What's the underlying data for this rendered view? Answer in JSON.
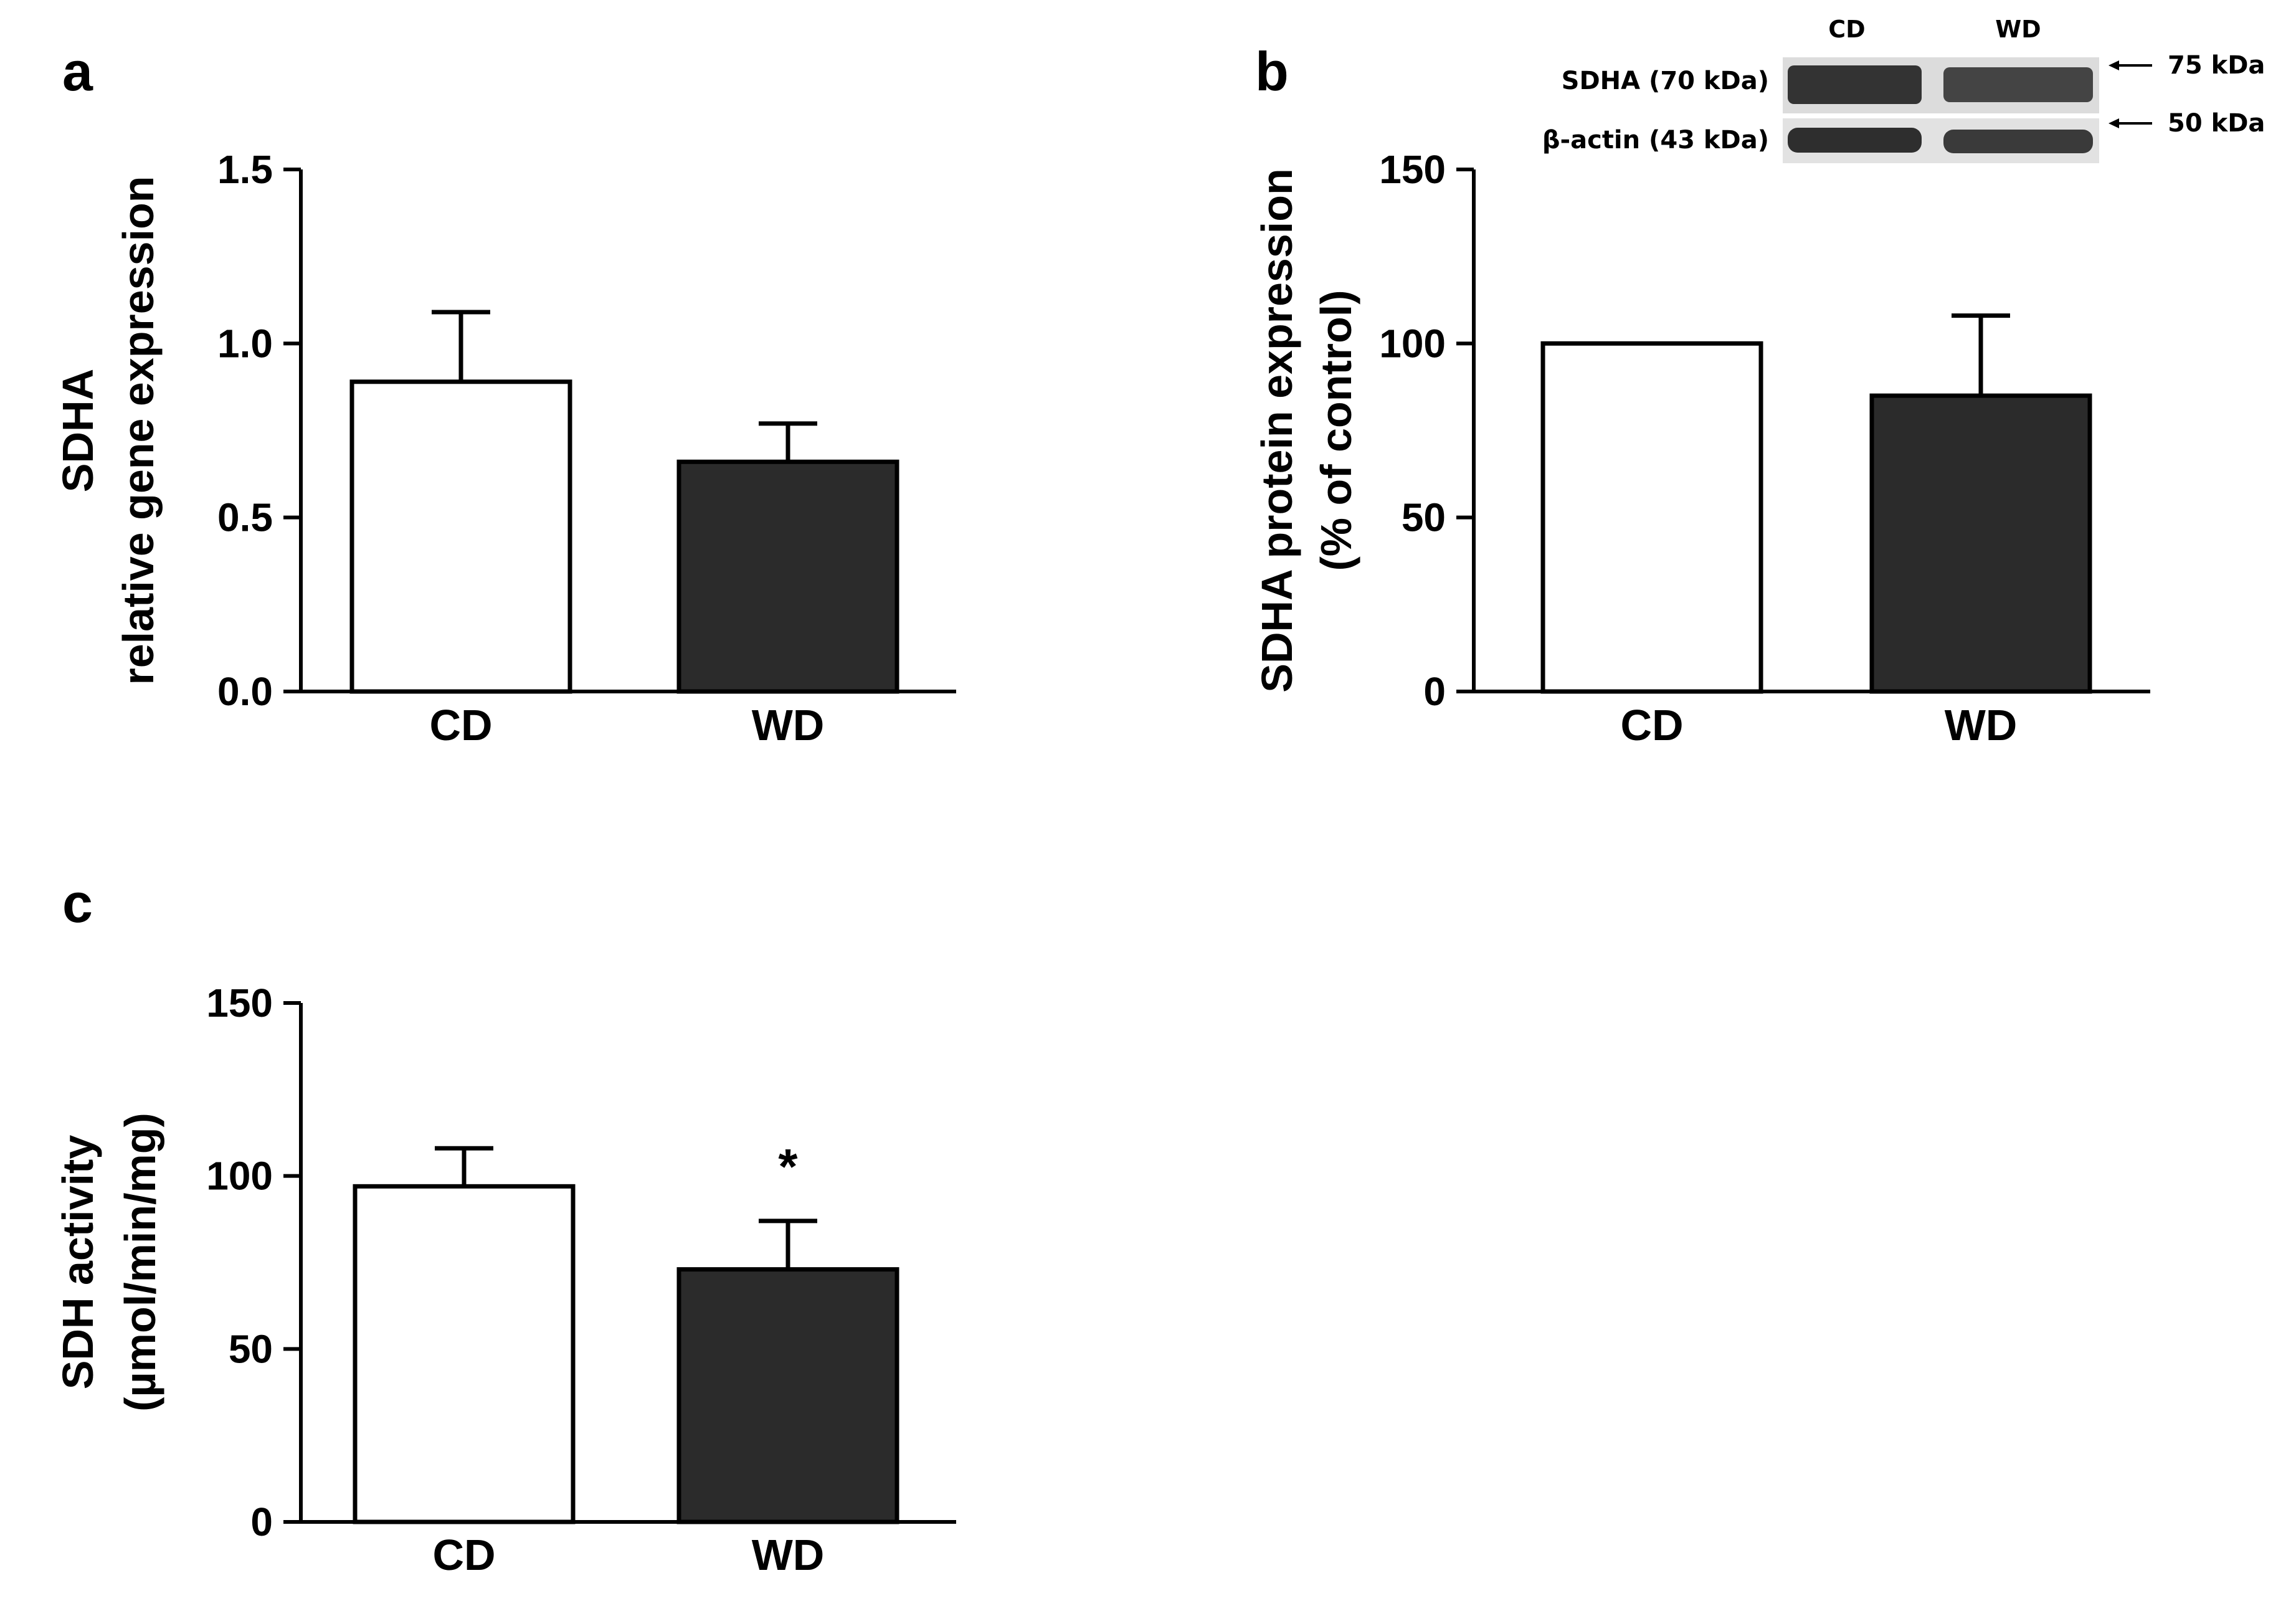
{
  "chart_data": [
    {
      "panel": "a",
      "type": "bar",
      "categories": [
        "CD",
        "WD"
      ],
      "values": [
        0.89,
        0.66
      ],
      "errors": [
        0.2,
        0.11
      ],
      "bar_colors": [
        "#ffffff",
        "#2b2b2b"
      ],
      "ylabel_line1": "SDHA",
      "ylabel_line2": "relative gene expression",
      "ylim": [
        0,
        1.5
      ],
      "yticks": [
        "0.0",
        "0.5",
        "1.0",
        "1.5"
      ],
      "significance": [
        "",
        ""
      ]
    },
    {
      "panel": "b",
      "type": "bar",
      "categories": [
        "CD",
        "WD"
      ],
      "values": [
        100,
        85
      ],
      "errors": [
        0,
        23
      ],
      "bar_colors": [
        "#ffffff",
        "#2b2b2b"
      ],
      "ylabel_line1": "SDHA protein expression",
      "ylabel_line2": "(% of control)",
      "ylim": [
        0,
        150
      ],
      "yticks": [
        "0",
        "50",
        "100",
        "150"
      ],
      "significance": [
        "",
        ""
      ]
    },
    {
      "panel": "c",
      "type": "bar",
      "categories": [
        "CD",
        "WD"
      ],
      "values": [
        97,
        73
      ],
      "errors": [
        11,
        14
      ],
      "bar_colors": [
        "#ffffff",
        "#2b2b2b"
      ],
      "ylabel_line1": "SDH activity",
      "ylabel_line2": "(µmol/min/mg)",
      "ylim": [
        0,
        150
      ],
      "yticks": [
        "0",
        "50",
        "100",
        "150"
      ],
      "significance": [
        "",
        "*"
      ]
    }
  ],
  "blot": {
    "lanes": [
      "CD",
      "WD"
    ],
    "rows": [
      "SDHA (70 kDa)",
      "β-actin (43 kDa)"
    ],
    "markers": [
      "75 kDa",
      "50 kDa"
    ]
  }
}
